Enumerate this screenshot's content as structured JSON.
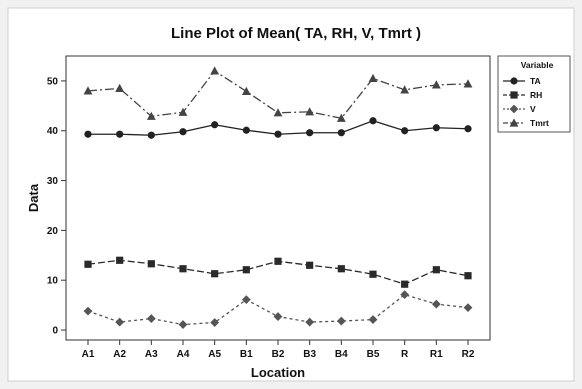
{
  "chart_data": {
    "type": "line",
    "title": "Line Plot of Mean( TA, RH, V, Tmrt )",
    "xlabel": "Location",
    "ylabel": "Data",
    "categories": [
      "A1",
      "A2",
      "A3",
      "A4",
      "A5",
      "B1",
      "B2",
      "B3",
      "B4",
      "B5",
      "R",
      "R1",
      "R2"
    ],
    "ylim": [
      -2,
      55
    ],
    "yticks": [
      0,
      10,
      20,
      30,
      40,
      50
    ],
    "grid": false,
    "legend": {
      "title": "Variable",
      "placement": "right"
    },
    "series": [
      {
        "name": "TA",
        "marker": "circle",
        "dash": "solid",
        "values": [
          39.3,
          39.3,
          39.1,
          39.8,
          41.2,
          40.1,
          39.3,
          39.6,
          39.6,
          42.0,
          40.0,
          40.6,
          40.4
        ]
      },
      {
        "name": "RH",
        "marker": "square",
        "dash": "dashed",
        "values": [
          13.2,
          14.0,
          13.3,
          12.3,
          11.3,
          12.1,
          13.8,
          13.0,
          12.3,
          11.2,
          9.2,
          12.1,
          10.9
        ]
      },
      {
        "name": "V",
        "marker": "diamond",
        "dash": "dotted",
        "values": [
          3.8,
          1.6,
          2.3,
          1.1,
          1.5,
          6.1,
          2.7,
          1.6,
          1.8,
          2.1,
          7.1,
          5.2,
          4.5
        ]
      },
      {
        "name": "Tmrt",
        "marker": "triangle",
        "dash": "dashdot",
        "values": [
          48.0,
          48.5,
          42.9,
          43.7,
          52.0,
          47.9,
          43.6,
          43.8,
          42.5,
          50.5,
          48.2,
          49.2,
          49.4
        ]
      }
    ]
  }
}
